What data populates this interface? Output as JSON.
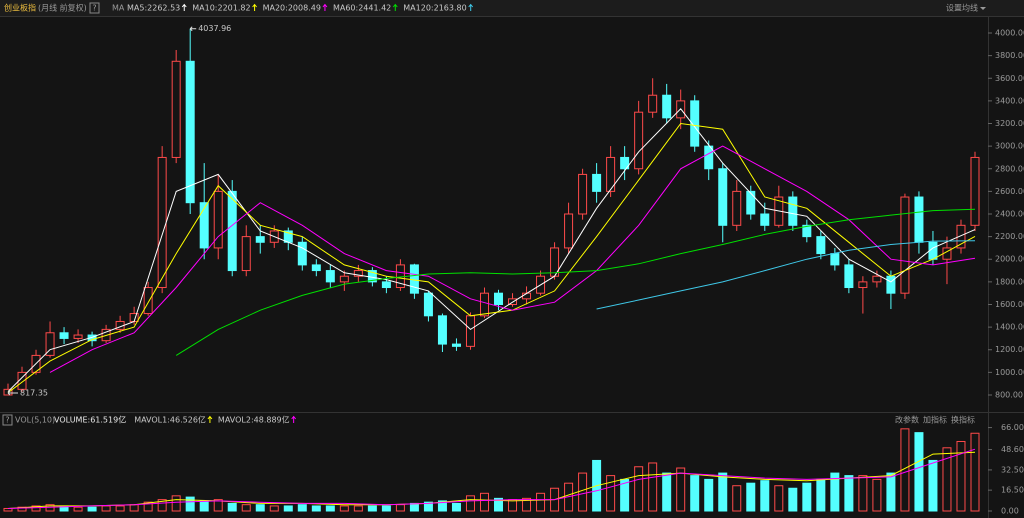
{
  "header": {
    "title": "创业板指",
    "subtitle": "(月线 前复权)",
    "help": "?",
    "ma_label": "MA",
    "settings": "设置均线"
  },
  "chart_data": {
    "type": "candlestick",
    "up_color": "#ff4a4a",
    "down_color": "#54ffff",
    "candles": {
      "open": [
        800,
        850,
        1000,
        1150,
        1350,
        1300,
        1330,
        1280,
        1380,
        1450,
        1520,
        1750,
        2900,
        3750,
        2500,
        2100,
        2600,
        1900,
        2200,
        2150,
        2250,
        2150,
        1950,
        1900,
        1800,
        1850,
        1900,
        1800,
        1750,
        1950,
        1700,
        1500,
        1250,
        1230,
        1500,
        1700,
        1600,
        1650,
        1700,
        1850,
        2100,
        2400,
        2750,
        2600,
        2900,
        2800,
        3300,
        3450,
        3250,
        3400,
        3000,
        2800,
        2300,
        2600,
        2400,
        2300,
        2550,
        2300,
        2200,
        2050,
        1950,
        1750,
        1800,
        1850,
        1700,
        2550,
        2150,
        2000,
        2100,
        2300
      ],
      "high": [
        900,
        1050,
        1200,
        1450,
        1400,
        1380,
        1360,
        1420,
        1500,
        1580,
        1800,
        3000,
        3850,
        4037.96,
        2850,
        2750,
        2700,
        2300,
        2300,
        2300,
        2280,
        2200,
        2000,
        1950,
        1900,
        1950,
        1930,
        1850,
        2000,
        1960,
        1720,
        1520,
        1300,
        1530,
        1750,
        1730,
        1700,
        1760,
        1900,
        2150,
        2500,
        2800,
        2850,
        3000,
        3000,
        3400,
        3600,
        3550,
        3500,
        3450,
        3050,
        2850,
        2700,
        2650,
        2500,
        2650,
        2600,
        2350,
        2250,
        2100,
        2000,
        1850,
        1900,
        1900,
        2580,
        2600,
        2250,
        2200,
        2350,
        2950
      ],
      "low": [
        817.35,
        830,
        980,
        1130,
        1250,
        1260,
        1230,
        1260,
        1350,
        1420,
        1500,
        1700,
        2850,
        2400,
        2000,
        2000,
        1850,
        1850,
        2050,
        2100,
        2080,
        1900,
        1850,
        1750,
        1720,
        1800,
        1760,
        1700,
        1720,
        1650,
        1450,
        1180,
        1190,
        1200,
        1480,
        1550,
        1580,
        1600,
        1680,
        1820,
        2050,
        2350,
        2500,
        2550,
        2700,
        2750,
        3250,
        3200,
        3150,
        2950,
        2700,
        2150,
        2250,
        2350,
        2250,
        2280,
        2250,
        2150,
        2000,
        1900,
        1700,
        1520,
        1750,
        1560,
        1650,
        2050,
        1950,
        1780,
        2050,
        2250
      ],
      "close": [
        850,
        1000,
        1150,
        1350,
        1300,
        1330,
        1280,
        1380,
        1450,
        1520,
        1750,
        2900,
        3750,
        2500,
        2100,
        2600,
        1900,
        2200,
        2150,
        2250,
        2150,
        1950,
        1900,
        1800,
        1850,
        1900,
        1800,
        1750,
        1950,
        1700,
        1500,
        1250,
        1230,
        1500,
        1700,
        1600,
        1650,
        1700,
        1850,
        2100,
        2400,
        2750,
        2600,
        2900,
        2800,
        3300,
        3450,
        3250,
        3400,
        3000,
        2800,
        2300,
        2600,
        2400,
        2300,
        2550,
        2300,
        2200,
        2050,
        1950,
        1750,
        1800,
        1850,
        1700,
        2550,
        2150,
        2000,
        2100,
        2300,
        2900
      ],
      "volume": [
        2,
        3,
        4,
        5,
        4,
        3,
        3,
        4,
        4,
        5,
        7,
        9,
        12,
        11,
        8,
        9,
        6,
        5,
        5,
        4,
        4,
        5,
        4,
        4,
        4,
        4,
        4,
        4,
        5,
        6,
        7,
        8,
        6,
        12,
        14,
        10,
        9,
        10,
        14,
        18,
        22,
        30,
        40,
        28,
        25,
        35,
        38,
        30,
        34,
        28,
        25,
        30,
        20,
        22,
        24,
        20,
        18,
        22,
        25,
        30,
        28,
        28,
        25,
        30,
        65,
        62,
        40,
        50,
        55,
        61.519
      ]
    },
    "ma_lines": [
      {
        "name": "MA5:2262.53",
        "color": "#ffffff",
        "x": [
          0,
          3,
          6,
          9,
          12,
          15,
          18,
          21,
          24,
          27,
          30,
          33,
          36,
          39,
          42,
          45,
          48,
          51,
          54,
          57,
          60,
          63,
          66,
          69
        ],
        "values": [
          830,
          1200,
          1310,
          1450,
          2600,
          2750,
          2250,
          2100,
          1880,
          1820,
          1720,
          1380,
          1620,
          1850,
          2450,
          2950,
          3330,
          2850,
          2450,
          2380,
          2000,
          1800,
          2100,
          2262.53
        ]
      },
      {
        "name": "MA10:2201.82",
        "color": "#ffff00",
        "x": [
          0,
          3,
          6,
          9,
          12,
          15,
          18,
          21,
          24,
          27,
          30,
          33,
          36,
          39,
          42,
          45,
          48,
          51,
          54,
          57,
          60,
          63,
          66,
          69
        ],
        "values": [
          820,
          1100,
          1290,
          1400,
          2050,
          2650,
          2300,
          2200,
          1950,
          1850,
          1800,
          1500,
          1550,
          1720,
          2200,
          2700,
          3200,
          3150,
          2550,
          2450,
          2150,
          1850,
          2000,
          2201.82
        ]
      },
      {
        "name": "MA20:2008.49",
        "color": "#ff00ff",
        "x": [
          0,
          3,
          6,
          9,
          12,
          15,
          18,
          21,
          24,
          27,
          30,
          33,
          36,
          39,
          42,
          45,
          48,
          51,
          54,
          57,
          60,
          63,
          66,
          69
        ],
        "values": [
          null,
          1000,
          1200,
          1350,
          1750,
          2200,
          2500,
          2300,
          2050,
          1900,
          1850,
          1650,
          1550,
          1620,
          1900,
          2300,
          2800,
          3000,
          2800,
          2600,
          2350,
          2000,
          1950,
          2008.49
        ]
      },
      {
        "name": "MA60:2441.42",
        "color": "#00e000",
        "x": [
          12,
          15,
          18,
          21,
          24,
          27,
          30,
          33,
          36,
          39,
          42,
          45,
          48,
          51,
          54,
          57,
          60,
          63,
          66,
          69
        ],
        "values": [
          1150,
          1380,
          1550,
          1680,
          1780,
          1830,
          1870,
          1880,
          1870,
          1880,
          1900,
          1960,
          2050,
          2130,
          2220,
          2290,
          2350,
          2390,
          2430,
          2441.42
        ]
      },
      {
        "name": "MA120:2163.80",
        "color": "#3fc8e8",
        "x": [
          42,
          45,
          48,
          51,
          54,
          57,
          60,
          63,
          66,
          69
        ],
        "values": [
          1560,
          1640,
          1720,
          1800,
          1900,
          2000,
          2080,
          2130,
          2160,
          2163.8
        ]
      }
    ],
    "ylim": [
      685,
      4115
    ],
    "yticks": [
      {
        "value": 800,
        "label": "800.00"
      },
      {
        "value": 1000,
        "label": "1000.00"
      },
      {
        "value": 1200,
        "label": "1200.00"
      },
      {
        "value": 1400,
        "label": "1400.00"
      },
      {
        "value": 1600,
        "label": "1600.00"
      },
      {
        "value": 1800,
        "label": "1800.00"
      },
      {
        "value": 2000,
        "label": "2000.00"
      },
      {
        "value": 2200,
        "label": "2200.00"
      },
      {
        "value": 2400,
        "label": "2400.00"
      },
      {
        "value": 2600,
        "label": "2600.00"
      },
      {
        "value": 2800,
        "label": "2800.00"
      },
      {
        "value": 3000,
        "label": "3000.00"
      },
      {
        "value": 3200,
        "label": "3200.00"
      },
      {
        "value": 3400,
        "label": "3400.00"
      },
      {
        "value": 3600,
        "label": "3600.00"
      },
      {
        "value": 3800,
        "label": "3800.00"
      },
      {
        "value": 4000,
        "label": "4000.00"
      }
    ],
    "annotations": {
      "high_label": "4037.96",
      "low_label": "817.35"
    },
    "volume": {
      "name": "VOL(5,10)",
      "help": "?",
      "volume_label": "VOLUME:61.519亿",
      "ylim": [
        0,
        72
      ],
      "yticks": [
        {
          "value": 0,
          "label": "0.00"
        },
        {
          "value": 16.5,
          "label": "16.50"
        },
        {
          "value": 32.5,
          "label": "32.50"
        },
        {
          "value": 48.6,
          "label": "48.60"
        },
        {
          "value": 66,
          "label": "66.00"
        }
      ],
      "buttons": [
        "改参数",
        "加指标",
        "换指标"
      ],
      "ma_lines": [
        {
          "name": "MAVOL1:46.526亿",
          "color": "#ffff00",
          "x": [
            0,
            3,
            6,
            9,
            12,
            15,
            18,
            21,
            24,
            27,
            30,
            33,
            36,
            39,
            42,
            45,
            48,
            51,
            54,
            57,
            60,
            63,
            66,
            69
          ],
          "values": [
            2,
            4,
            4,
            5,
            9,
            8,
            6,
            6,
            5,
            5,
            6,
            9,
            8,
            9,
            20,
            28,
            30,
            27,
            25,
            24,
            26,
            28,
            45,
            46.526
          ]
        },
        {
          "name": "MAVOL2:48.889亿",
          "color": "#ff00ff",
          "x": [
            0,
            3,
            6,
            9,
            12,
            15,
            18,
            21,
            24,
            27,
            30,
            33,
            36,
            39,
            42,
            45,
            48,
            51,
            54,
            57,
            60,
            63,
            66,
            69
          ],
          "values": [
            2,
            3,
            4,
            5,
            7,
            8,
            7,
            6,
            6,
            5,
            6,
            8,
            9,
            9,
            16,
            25,
            30,
            28,
            26,
            25,
            26,
            27,
            38,
            48.889
          ]
        }
      ]
    }
  }
}
